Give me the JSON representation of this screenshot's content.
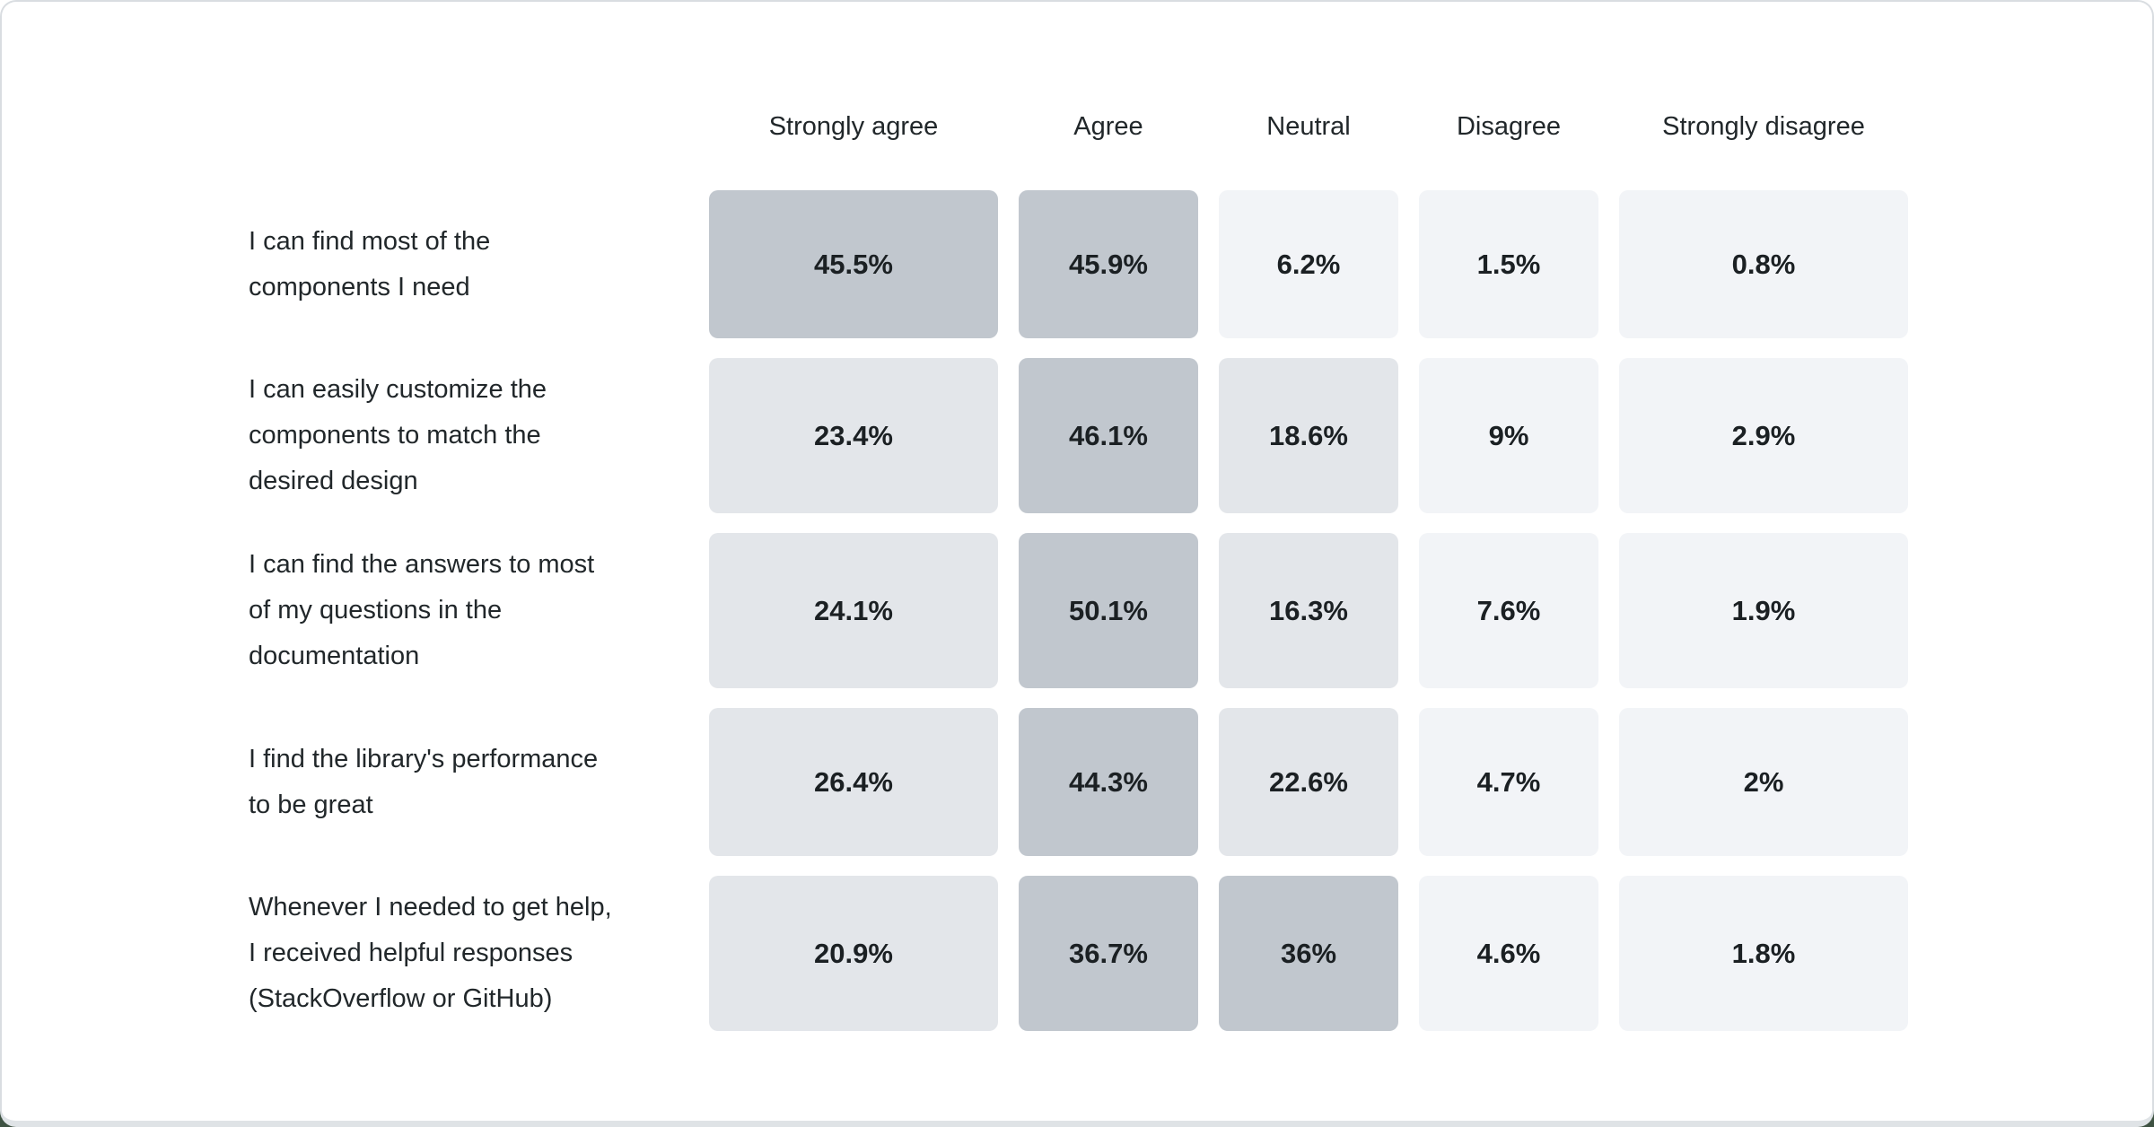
{
  "colors": {
    "heat_high": "#c1c7ce",
    "heat_mid": "#e3e6ea",
    "heat_low": "#f2f4f7",
    "heat_threshold_high": 30,
    "heat_threshold_mid": 10,
    "card_border": "#d9dde1",
    "card_bottom_strip": "#dfe3e6",
    "page_edge_green": "#3e5242",
    "text": "#21272a"
  },
  "chart_data": {
    "type": "heatmap",
    "title": "",
    "columns": [
      "Strongly agree",
      "Agree",
      "Neutral",
      "Disagree",
      "Strongly disagree"
    ],
    "rows": [
      {
        "label": "I can find most of the components I need",
        "label_lines": [
          "I can find most of the",
          "components I need"
        ],
        "values": [
          45.5,
          45.9,
          6.2,
          1.5,
          0.8
        ],
        "values_display": [
          "45.5%",
          "45.9%",
          "6.2%",
          "1.5%",
          "0.8%"
        ]
      },
      {
        "label": "I can easily customize the components to match the desired design",
        "label_lines": [
          "I can easily customize the",
          "components to match the",
          "desired design"
        ],
        "values": [
          23.4,
          46.1,
          18.6,
          9,
          2.9
        ],
        "values_display": [
          "23.4%",
          "46.1%",
          "18.6%",
          "9%",
          "2.9%"
        ]
      },
      {
        "label": "I can find the answers to most of my questions in the documentation",
        "label_lines": [
          "I can find the answers to most",
          "of my questions in the",
          "documentation"
        ],
        "values": [
          24.1,
          50.1,
          16.3,
          7.6,
          1.9
        ],
        "values_display": [
          "24.1%",
          "50.1%",
          "16.3%",
          "7.6%",
          "1.9%"
        ]
      },
      {
        "label": "I find the library's performance to be great",
        "label_lines": [
          "I find the library's performance",
          "to be great"
        ],
        "values": [
          26.4,
          44.3,
          22.6,
          4.7,
          2
        ],
        "values_display": [
          "26.4%",
          "44.3%",
          "22.6%",
          "4.7%",
          "2%"
        ]
      },
      {
        "label": "Whenever I needed to get help, I received helpful responses (StackOverflow or GitHub)",
        "label_lines": [
          "Whenever I needed to get help,",
          "I received helpful responses",
          "(StackOverflow or GitHub)"
        ],
        "values": [
          20.9,
          36.7,
          36,
          4.6,
          1.8
        ],
        "values_display": [
          "20.9%",
          "36.7%",
          "36%",
          "4.6%",
          "1.8%"
        ]
      }
    ]
  }
}
